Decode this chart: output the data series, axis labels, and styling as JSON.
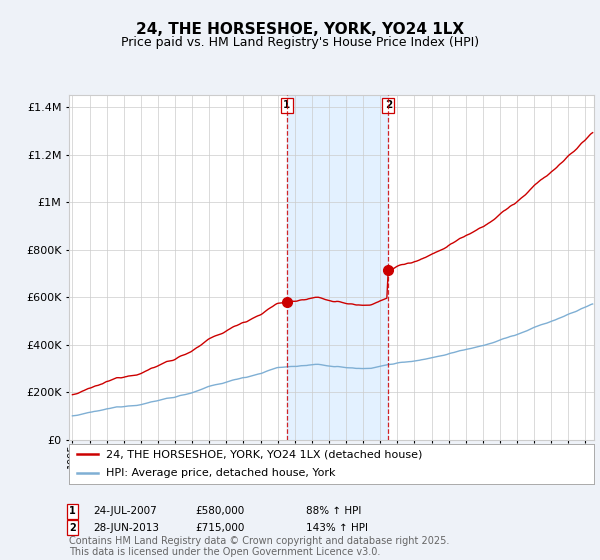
{
  "title": "24, THE HORSESHOE, YORK, YO24 1LX",
  "subtitle": "Price paid vs. HM Land Registry's House Price Index (HPI)",
  "ylim": [
    0,
    1450000
  ],
  "yticks": [
    0,
    200000,
    400000,
    600000,
    800000,
    1000000,
    1200000,
    1400000
  ],
  "xlim_start": 1994.8,
  "xlim_end": 2025.5,
  "sale1_date": 2007.56,
  "sale1_price": 580000,
  "sale1_label": "1",
  "sale1_hpi_pct": "88% ↑ HPI",
  "sale1_date_str": "24-JUL-2007",
  "sale2_date": 2013.49,
  "sale2_price": 715000,
  "sale2_label": "2",
  "sale2_hpi_pct": "143% ↑ HPI",
  "sale2_date_str": "28-JUN-2013",
  "legend_line1": "24, THE HORSESHOE, YORK, YO24 1LX (detached house)",
  "legend_line2": "HPI: Average price, detached house, York",
  "footnote": "Contains HM Land Registry data © Crown copyright and database right 2025.\nThis data is licensed under the Open Government Licence v3.0.",
  "bg_color": "#eef2f8",
  "plot_bg_color": "#ffffff",
  "red_color": "#cc0000",
  "blue_color": "#7fafd4",
  "shade_color": "#ddeeff",
  "vline_color": "#cc0000",
  "grid_color": "#cccccc",
  "title_fontsize": 11,
  "subtitle_fontsize": 9,
  "tick_fontsize": 8,
  "legend_fontsize": 8,
  "footnote_fontsize": 7
}
